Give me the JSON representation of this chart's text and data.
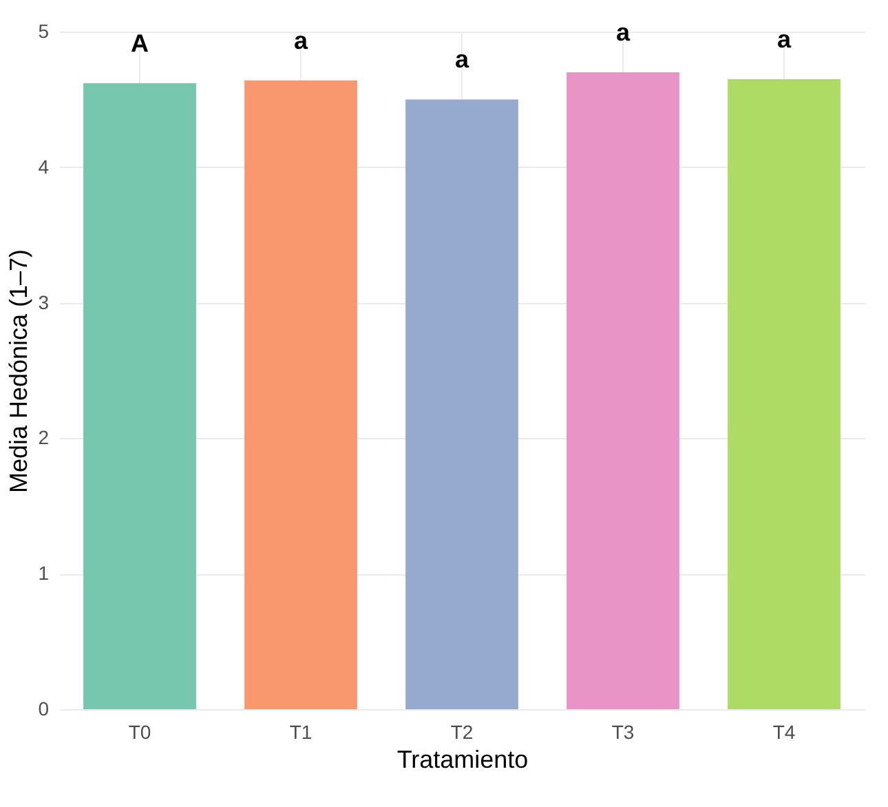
{
  "chart_data": {
    "type": "bar",
    "xlabel": "Tratamiento",
    "ylabel": "Media Hedónica (1–7)",
    "categories": [
      "T0",
      "T1",
      "T2",
      "T3",
      "T4"
    ],
    "values": [
      4.62,
      4.64,
      4.5,
      4.7,
      4.65
    ],
    "colors": [
      "#76c7ae",
      "#f9986f",
      "#96a9cf",
      "#e894c7",
      "#addb64"
    ],
    "ylim": [
      0,
      5
    ],
    "yticks": [
      0,
      1,
      2,
      3,
      4,
      5
    ],
    "grid": true,
    "annotations": [
      {
        "text": "A",
        "x": "T0",
        "y": 4.62
      },
      {
        "text": "a",
        "x": "T1",
        "y": 4.64
      },
      {
        "text": "a",
        "x": "T2",
        "y": 4.5
      },
      {
        "text": "a",
        "x": "T3",
        "y": 4.7
      },
      {
        "text": "a",
        "x": "T4",
        "y": 4.65
      }
    ]
  }
}
